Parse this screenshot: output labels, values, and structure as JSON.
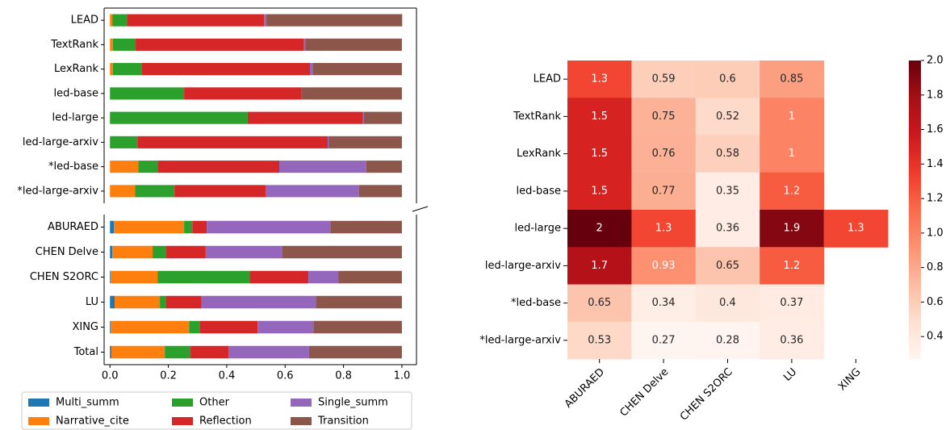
{
  "chart_data": [
    {
      "type": "stacked-barh",
      "categories": [
        "LEAD",
        "TextRank",
        "LexRank",
        "led-base",
        "led-large",
        "led-large-arxiv",
        "*led-base",
        "*led-large-arxiv"
      ],
      "series": [
        {
          "color": "#1f77b4",
          "values": [
            0,
            0,
            0,
            0,
            0,
            0,
            0,
            0
          ]
        },
        {
          "color": "#ff7f0e",
          "values": [
            0.008,
            0.01,
            0.01,
            0,
            0,
            0,
            0.097,
            0.086
          ]
        },
        {
          "color": "#2ca02c",
          "values": [
            0.05,
            0.078,
            0.1,
            0.254,
            0.472,
            0.094,
            0.066,
            0.135
          ]
        },
        {
          "color": "#d62728",
          "values": [
            0.47,
            0.577,
            0.575,
            0.403,
            0.395,
            0.652,
            0.417,
            0.312
          ]
        },
        {
          "color": "#9467bd",
          "values": [
            0.008,
            0.005,
            0.01,
            0,
            0.003,
            0.004,
            0.298,
            0.32
          ]
        },
        {
          "color": "#8c564b",
          "values": [
            0.465,
            0.33,
            0.305,
            0.343,
            0.13,
            0.25,
            0.122,
            0.147
          ]
        }
      ],
      "xlim": [
        -0.02,
        1.05
      ]
    },
    {
      "type": "stacked-barh",
      "categories": [
        "ABURAED",
        "CHEN Delve",
        "CHEN S2ORC",
        "LU",
        "XING",
        "Total"
      ],
      "series": [
        {
          "name": "Multi_summ",
          "color": "#1f77b4",
          "values": [
            0.014,
            0.008,
            0.003,
            0.016,
            0.003,
            0.005
          ]
        },
        {
          "name": "Narrative_cite",
          "color": "#ff7f0e",
          "values": [
            0.24,
            0.138,
            0.16,
            0.155,
            0.268,
            0.183
          ]
        },
        {
          "name": "Other",
          "color": "#2ca02c",
          "values": [
            0.028,
            0.047,
            0.315,
            0.02,
            0.036,
            0.088
          ]
        },
        {
          "name": "Reflection",
          "color": "#d62728",
          "values": [
            0.05,
            0.135,
            0.202,
            0.122,
            0.199,
            0.13
          ]
        },
        {
          "name": "Single_summ",
          "color": "#9467bd",
          "values": [
            0.423,
            0.262,
            0.102,
            0.392,
            0.191,
            0.276
          ]
        },
        {
          "name": "Transition",
          "color": "#8c564b",
          "values": [
            0.245,
            0.41,
            0.218,
            0.295,
            0.303,
            0.318
          ]
        }
      ],
      "xlim": [
        -0.02,
        1.05
      ],
      "xticks": [
        {
          "value": 0,
          "label": "0.0"
        },
        0.2,
        0.4,
        0.6,
        0.8,
        {
          "value": 1,
          "label": "1.0"
        }
      ],
      "legend": "bottom"
    },
    {
      "type": "heatmap",
      "x_categories": [
        "ABURAED",
        "CHEN Delve",
        "CHEN S2ORC",
        "LU",
        "XING"
      ],
      "y_categories": [
        "LEAD",
        "TextRank",
        "LexRank",
        "led-base",
        "led-large",
        "led-large-arxiv",
        "*led-base",
        "*led-large-arxiv"
      ],
      "values": [
        [
          1.3,
          0.59,
          0.6,
          0.85,
          null
        ],
        [
          1.5,
          0.75,
          0.52,
          1,
          null
        ],
        [
          1.5,
          0.76,
          0.58,
          1,
          null
        ],
        [
          1.5,
          0.77,
          0.35,
          1.2,
          null
        ],
        [
          2,
          1.3,
          0.36,
          1.9,
          1.3
        ],
        [
          1.7,
          0.93,
          0.65,
          1.2,
          null
        ],
        [
          0.65,
          0.34,
          0.4,
          0.37,
          null
        ],
        [
          0.53,
          0.27,
          0.28,
          0.36,
          null
        ]
      ],
      "colormap": "Reds",
      "zlim": [
        0.27,
        2.0
      ],
      "zticks": [
        0.4,
        0.6,
        0.8,
        {
          "value": 1,
          "label": "1.0"
        },
        1.2,
        1.4,
        1.6,
        1.8,
        {
          "value": 2,
          "label": "2.0"
        }
      ]
    }
  ]
}
